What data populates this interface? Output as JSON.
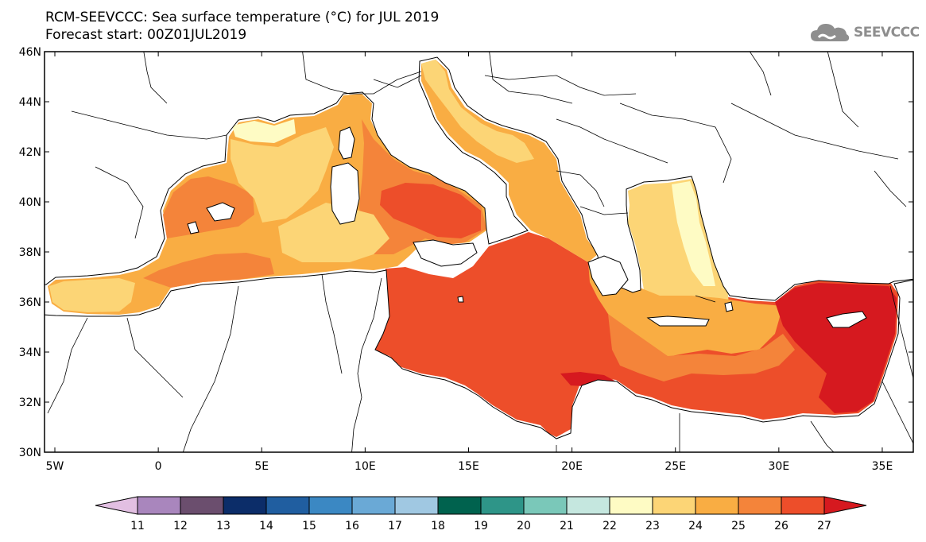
{
  "header": {
    "title_line1": "RCM-SEEVCCC: Sea surface temperature (°C) for JUL 2019",
    "title_line2": "Forecast start: 00Z01JUL2019"
  },
  "logo": {
    "text": "SEEVCCC",
    "icon": "cloud-icon"
  },
  "map": {
    "lon_labels": [
      "5W",
      "0",
      "5E",
      "10E",
      "15E",
      "20E",
      "25E",
      "30E",
      "35E"
    ],
    "lat_labels": [
      "46N",
      "44N",
      "42N",
      "40N",
      "38N",
      "36N",
      "34N",
      "32N",
      "30N"
    ],
    "lon_range": [
      -5.5,
      36.5
    ],
    "lat_range": [
      30,
      46
    ]
  },
  "colorbar": {
    "ticks": [
      "11",
      "12",
      "13",
      "14",
      "15",
      "16",
      "17",
      "18",
      "19",
      "20",
      "21",
      "22",
      "23",
      "24",
      "25",
      "26",
      "27"
    ],
    "colors": [
      "#e2bfe2",
      "#a986bd",
      "#6b4e6e",
      "#0c2d69",
      "#205ea0",
      "#3b88c3",
      "#6aa9d6",
      "#a0c8e2",
      "#00624e",
      "#2e9588",
      "#7ac8b9",
      "#c5e7df",
      "#fefbc4",
      "#fcd576",
      "#f9ad43",
      "#f4843a",
      "#ed4e2a",
      "#d6191f"
    ]
  },
  "colors": {
    "t23": "#fefbc4",
    "t24": "#fcd576",
    "t25": "#f9ad43",
    "t26": "#f4843a",
    "t27": "#ed4e2a",
    "t28": "#d6191f"
  }
}
